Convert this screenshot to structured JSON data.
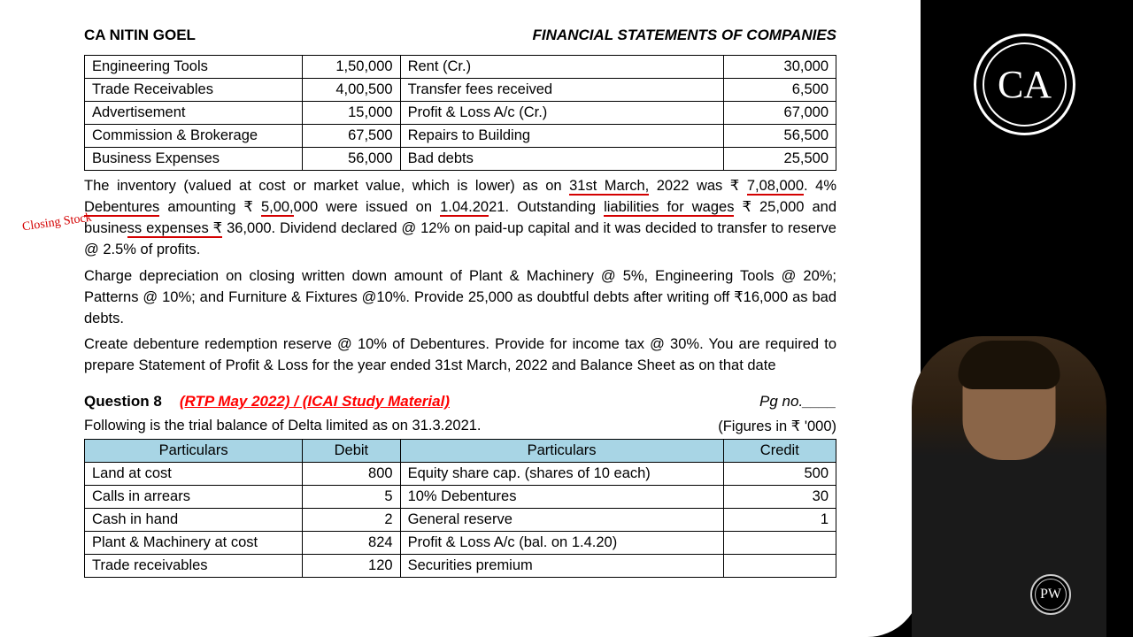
{
  "header": {
    "author": "CA NITIN GOEL",
    "title": "FINANCIAL STATEMENTS OF COMPANIES"
  },
  "table1": {
    "rows": [
      [
        "Engineering Tools",
        "1,50,000",
        "Rent (Cr.)",
        "30,000"
      ],
      [
        "Trade Receivables",
        "4,00,500",
        "Transfer fees received",
        "6,500"
      ],
      [
        "Advertisement",
        "15,000",
        "Profit & Loss A/c (Cr.)",
        "67,000"
      ],
      [
        "Commission & Brokerage",
        "67,500",
        "Repairs to Building",
        "56,500"
      ],
      [
        "Business Expenses",
        "56,000",
        "Bad debts",
        "25,500"
      ]
    ]
  },
  "paragraphs": {
    "p1_a": "The inventory (valued at cost or market value, which is lower) as on ",
    "p1_date1": "31st March,",
    "p1_b": " 2022 was ₹ ",
    "p1_amt1": "7,08,000",
    "p1_c": ". 4% ",
    "p1_deb": "Debentures",
    "p1_d": " amounting ₹ ",
    "p1_amt2": "5,00,",
    "p1_amt2b": "000 were issued on ",
    "p1_date2": "1.04.20",
    "p1_e": "21. Outstanding ",
    "p1_liab": "liabilities for wages",
    "p1_f": " ₹ 25,000 and busine",
    "p1_exp": "ss expenses ₹",
    "p1_g": " 36,000. Dividend declared @ 12% on paid-up capital and it was decided to transfer to reserve @ 2.5% of profits.",
    "p2": "Charge depreciation on closing written down amount of Plant & Machinery @ 5%, Engineering Tools @ 20%; Patterns @ 10%; and Furniture & Fixtures @10%. Provide 25,000 as doubtful debts after writing off ₹16,000 as bad debts.",
    "p3": "Create debenture redemption reserve @ 10% of Debentures. Provide for income tax @ 30%. You are required to prepare Statement of Profit & Loss for the year ended 31st March, 2022 and Balance Sheet as on that date"
  },
  "question": {
    "label": "Question 8",
    "source": "(RTP May 2022) / (ICAI Study Material)",
    "page": "Pg no.____",
    "intro_left": "Following is the trial balance of Delta limited as on 31.3.2021.",
    "intro_right": "(Figures in ₹ '000)"
  },
  "table2": {
    "headers": [
      "Particulars",
      "Debit",
      "Particulars",
      "Credit"
    ],
    "rows": [
      [
        "Land at cost",
        "800",
        "Equity share cap. (shares of 10 each)",
        "500"
      ],
      [
        "Calls in arrears",
        "5",
        "10% Debentures",
        "30"
      ],
      [
        "Cash in hand",
        "2",
        "General reserve",
        "1"
      ],
      [
        "Plant & Machinery at cost",
        "824",
        "Profit & Loss A/c (bal. on 1.4.20)",
        ""
      ],
      [
        "Trade receivables",
        "120",
        "Securities premium",
        ""
      ]
    ]
  },
  "annotation": "Closing\nStock",
  "logos": {
    "ca": "CA",
    "pw": "PW"
  }
}
